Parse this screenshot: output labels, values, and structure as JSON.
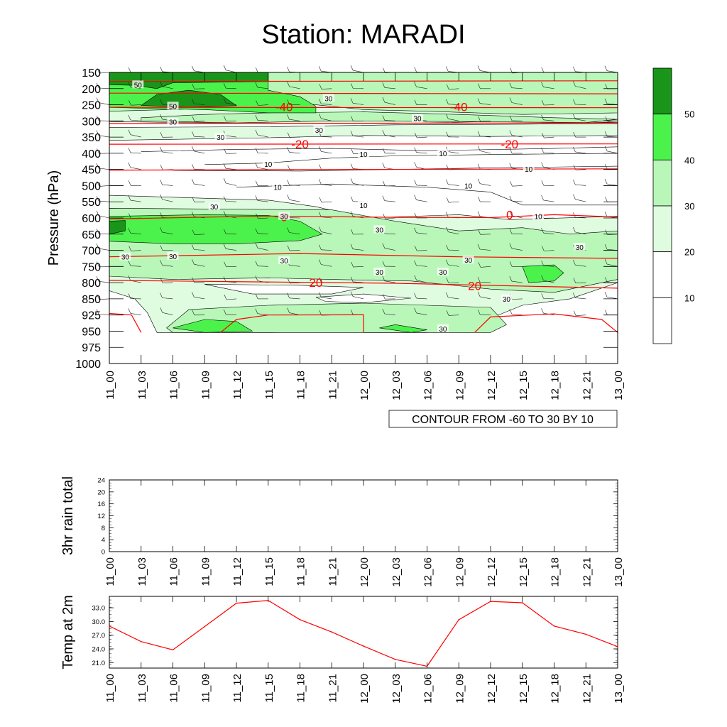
{
  "title": "Station: MARADI",
  "colors": {
    "shade_lt": "#e0fce0",
    "shade_md": "#b8f7b8",
    "shade_hi": "#4cf24c",
    "shade_dk": "#199619",
    "temp_line": "#ff0000",
    "contour": "#000000"
  },
  "time_labels": [
    "11_00",
    "11_03",
    "11_06",
    "11_09",
    "11_12",
    "11_15",
    "11_18",
    "11_21",
    "12_00",
    "12_03",
    "12_06",
    "12_09",
    "12_12",
    "12_15",
    "12_18",
    "12_21",
    "13_00"
  ],
  "chart_data": [
    {
      "type": "heatmap",
      "name": "time-height cross section",
      "ylabel": "Pressure (hPa)",
      "pressure_levels": [
        150,
        200,
        250,
        300,
        350,
        400,
        450,
        500,
        550,
        600,
        650,
        700,
        750,
        800,
        850,
        925,
        950,
        975,
        1000
      ],
      "pressure_labels": [
        "150",
        "200",
        "250",
        "300",
        "350",
        "400",
        "450",
        "500",
        "550",
        "600",
        "650",
        "700",
        "750",
        "800",
        "850",
        "925",
        "950",
        "975",
        "1000"
      ],
      "colorbar": {
        "levels": [
          10,
          20,
          30,
          40,
          50
        ],
        "labels": [
          "10",
          "20",
          "30",
          "40",
          "50"
        ]
      },
      "info_label": "CONTOUR FROM -60 TO 30 BY 10",
      "temperature_labels": [
        {
          "text": "-40",
          "t": 5.5,
          "p": 256
        },
        {
          "text": "-40",
          "t": 11.0,
          "p": 256
        },
        {
          "text": "-20",
          "t": 6.0,
          "p": 372
        },
        {
          "text": "-20",
          "t": 12.6,
          "p": 372
        },
        {
          "text": "0",
          "t": 5.5,
          "p": 597
        },
        {
          "text": "0",
          "t": 12.6,
          "p": 590
        },
        {
          "text": "20",
          "t": 6.5,
          "p": 800
        },
        {
          "text": "20",
          "t": 11.5,
          "p": 810
        }
      ],
      "humidity_labels": [
        {
          "text": "50",
          "t": 0.9,
          "p": 188
        },
        {
          "text": "50",
          "t": 2.0,
          "p": 254
        },
        {
          "text": "30",
          "t": 2.0,
          "p": 303
        },
        {
          "text": "30",
          "t": 3.5,
          "p": 350
        },
        {
          "text": "30",
          "t": 6.9,
          "p": 230
        },
        {
          "text": "30",
          "t": 6.6,
          "p": 328
        },
        {
          "text": "30",
          "t": 9.7,
          "p": 292
        },
        {
          "text": "10",
          "t": 5.0,
          "p": 433
        },
        {
          "text": "10",
          "t": 8.0,
          "p": 402
        },
        {
          "text": "10",
          "t": 10.5,
          "p": 400
        },
        {
          "text": "10",
          "t": 5.3,
          "p": 505
        },
        {
          "text": "10",
          "t": 11.3,
          "p": 500
        },
        {
          "text": "10",
          "t": 8.0,
          "p": 560
        },
        {
          "text": "10",
          "t": 13.2,
          "p": 448
        },
        {
          "text": "10",
          "t": 13.5,
          "p": 595
        },
        {
          "text": "30",
          "t": 3.3,
          "p": 565
        },
        {
          "text": "30",
          "t": 5.5,
          "p": 595
        },
        {
          "text": "30",
          "t": 8.5,
          "p": 636
        },
        {
          "text": "30",
          "t": 0.5,
          "p": 720
        },
        {
          "text": "30",
          "t": 2.0,
          "p": 718
        },
        {
          "text": "30",
          "t": 5.5,
          "p": 732
        },
        {
          "text": "30",
          "t": 8.5,
          "p": 767
        },
        {
          "text": "30",
          "t": 10.5,
          "p": 767
        },
        {
          "text": "30",
          "t": 11.3,
          "p": 730
        },
        {
          "text": "30",
          "t": 14.8,
          "p": 690
        },
        {
          "text": "30",
          "t": 12.5,
          "p": 850
        },
        {
          "text": "30",
          "t": 10.5,
          "p": 946
        }
      ]
    },
    {
      "type": "bar",
      "name": "3hr rain total",
      "ylabel": "3hr rain total",
      "ylim": [
        0,
        24
      ],
      "yticks": [
        "0",
        "4",
        "8",
        "12",
        "16",
        "20",
        "24"
      ],
      "values": [
        0,
        0,
        0,
        0,
        0,
        0,
        0,
        0,
        0,
        0,
        0,
        0,
        0,
        0,
        0,
        0,
        0
      ]
    },
    {
      "type": "line",
      "name": "Temp at 2m",
      "ylabel": "Temp at 2m",
      "ylim": [
        19.8,
        35.5
      ],
      "yticks": [
        "21.0",
        "24.0",
        "27.0",
        "30.0",
        "33.0"
      ],
      "values": [
        29.0,
        25.6,
        23.8,
        28.9,
        34.0,
        34.6,
        30.4,
        27.7,
        24.6,
        21.7,
        20.2,
        30.4,
        34.4,
        34.1,
        29.0,
        27.2,
        24.5
      ]
    }
  ]
}
